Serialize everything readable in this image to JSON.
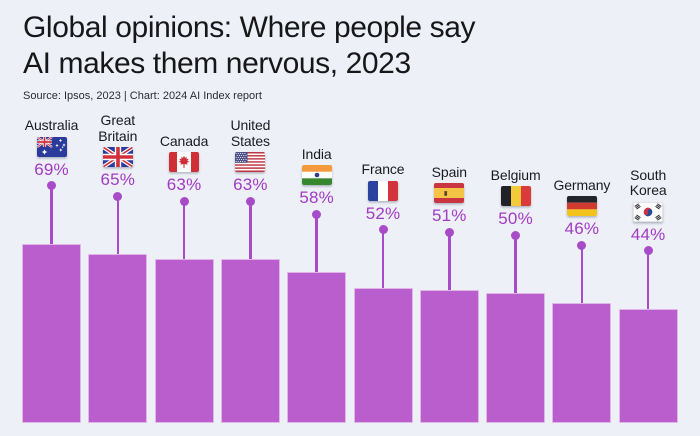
{
  "header": {
    "title_line1": "Global opinions: Where people say",
    "title_line2": "AI makes them nervous, 2023",
    "source": "Source: Ipsos, 2023 | Chart: 2024 AI Index report"
  },
  "colors": {
    "background": "#edf1f7",
    "bar": "#bb5ecd",
    "stem": "#a84bc8",
    "value_text": "#a23ac3",
    "label_text": "#1b1b1e"
  },
  "chart_data": {
    "type": "bar",
    "title": "Global opinions: Where people say AI makes them nervous, 2023",
    "source": "Source: Ipsos, 2023 | Chart: 2024 AI Index report",
    "unit": "%",
    "ylim": [
      0,
      70
    ],
    "grid": false,
    "legend": "none",
    "bar_color": "#bb5ecd",
    "categories": [
      "Australia",
      "Great Britain",
      "Canada",
      "United States",
      "India",
      "France",
      "Spain",
      "Belgium",
      "Germany",
      "South Korea"
    ],
    "values": [
      69,
      65,
      63,
      63,
      58,
      52,
      51,
      50,
      46,
      44
    ],
    "countries": [
      {
        "id": "australia",
        "name": "Australia",
        "label_lines": "Australia",
        "value": 69,
        "value_label": "69%",
        "flag_icon": "australia-flag-icon"
      },
      {
        "id": "great-britain",
        "name": "Great Britain",
        "label_lines": "Great\nBritain",
        "value": 65,
        "value_label": "65%",
        "flag_icon": "great-britain-flag-icon"
      },
      {
        "id": "canada",
        "name": "Canada",
        "label_lines": "Canada",
        "value": 63,
        "value_label": "63%",
        "flag_icon": "canada-flag-icon"
      },
      {
        "id": "united-states",
        "name": "United States",
        "label_lines": "United\nStates",
        "value": 63,
        "value_label": "63%",
        "flag_icon": "united-states-flag-icon"
      },
      {
        "id": "india",
        "name": "India",
        "label_lines": "India",
        "value": 58,
        "value_label": "58%",
        "flag_icon": "india-flag-icon"
      },
      {
        "id": "france",
        "name": "France",
        "label_lines": "France",
        "value": 52,
        "value_label": "52%",
        "flag_icon": "france-flag-icon"
      },
      {
        "id": "spain",
        "name": "Spain",
        "label_lines": "Spain",
        "value": 51,
        "value_label": "51%",
        "flag_icon": "spain-flag-icon"
      },
      {
        "id": "belgium",
        "name": "Belgium",
        "label_lines": "Belgium",
        "value": 50,
        "value_label": "50%",
        "flag_icon": "belgium-flag-icon"
      },
      {
        "id": "germany",
        "name": "Germany",
        "label_lines": "Germany",
        "value": 46,
        "value_label": "46%",
        "flag_icon": "germany-flag-icon"
      },
      {
        "id": "south-korea",
        "name": "South Korea",
        "label_lines": "South\nKorea",
        "value": 44,
        "value_label": "44%",
        "flag_icon": "south-korea-flag-icon"
      }
    ]
  }
}
